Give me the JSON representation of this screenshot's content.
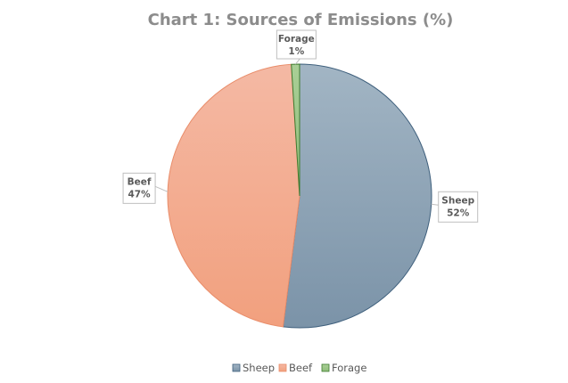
{
  "chart_data": {
    "type": "pie",
    "title": "Chart 1: Sources of Emissions (%)",
    "categories": [
      "Sheep",
      "Beef",
      "Forage"
    ],
    "values": [
      52,
      47,
      1
    ],
    "value_suffix": "%",
    "legend_position": "bottom",
    "colors": {
      "Sheep": {
        "light": "#a2b5c4",
        "dark": "#7b93a8",
        "stroke": "#3e5f7c"
      },
      "Beef": {
        "light": "#f4b9a4",
        "dark": "#f2a07e",
        "stroke": "#e98d6a"
      },
      "Forage": {
        "light": "#a9cf96",
        "dark": "#8fbd7a",
        "stroke": "#3e7a2f"
      }
    }
  }
}
